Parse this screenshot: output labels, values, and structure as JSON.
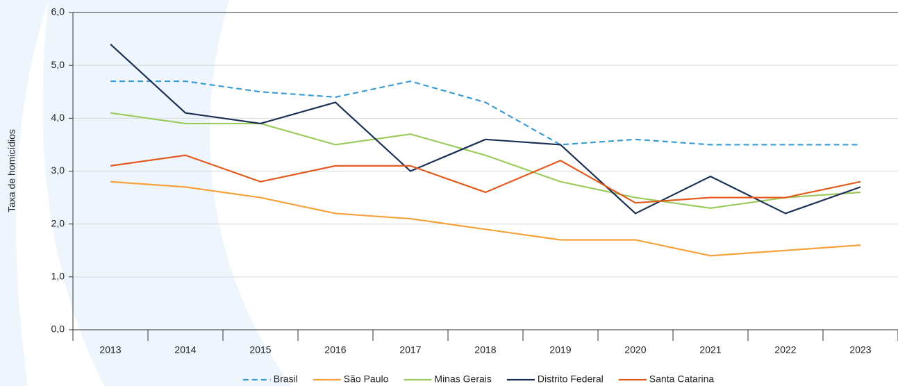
{
  "chart_data": {
    "type": "line",
    "y_label": "Taxa de homicídios",
    "categories": [
      "2013",
      "2014",
      "2015",
      "2016",
      "2017",
      "2018",
      "2019",
      "2020",
      "2021",
      "2022",
      "2023"
    ],
    "series": [
      {
        "name": "Brasil",
        "color": "#3a9bd5",
        "style": "dashed",
        "values": [
          4.7,
          4.7,
          4.5,
          4.4,
          4.7,
          4.3,
          3.5,
          3.6,
          3.5,
          3.5,
          3.5
        ]
      },
      {
        "name": "São Paulo",
        "color": "#f7a13a",
        "style": "solid",
        "values": [
          2.8,
          2.7,
          2.5,
          2.2,
          2.1,
          1.9,
          1.7,
          1.7,
          1.4,
          1.5,
          1.6
        ]
      },
      {
        "name": "Minas Gerais",
        "color": "#9bcb5d",
        "style": "solid",
        "values": [
          4.1,
          3.9,
          3.9,
          3.5,
          3.7,
          3.3,
          2.8,
          2.5,
          2.3,
          2.5,
          2.6
        ]
      },
      {
        "name": "Distrito Federal",
        "color": "#1b2f55",
        "style": "solid",
        "values": [
          5.4,
          4.1,
          3.9,
          4.3,
          3.0,
          3.6,
          3.5,
          2.2,
          2.9,
          2.2,
          2.7
        ]
      },
      {
        "name": "Santa Catarina",
        "color": "#e35a1e",
        "style": "solid",
        "values": [
          3.1,
          3.3,
          2.8,
          3.1,
          3.1,
          2.6,
          3.2,
          2.4,
          2.5,
          2.5,
          2.8
        ]
      }
    ],
    "ylim": [
      0,
      6
    ],
    "yticks": [
      {
        "value": 0,
        "label": "0,0"
      },
      {
        "value": 1,
        "label": "1,0"
      },
      {
        "value": 2,
        "label": "2,0"
      },
      {
        "value": 3,
        "label": "3,0"
      },
      {
        "value": 4,
        "label": "4,0"
      },
      {
        "value": 5,
        "label": "5,0"
      },
      {
        "value": 6,
        "label": "6,0"
      }
    ],
    "grid": true,
    "legend": "bottom"
  }
}
